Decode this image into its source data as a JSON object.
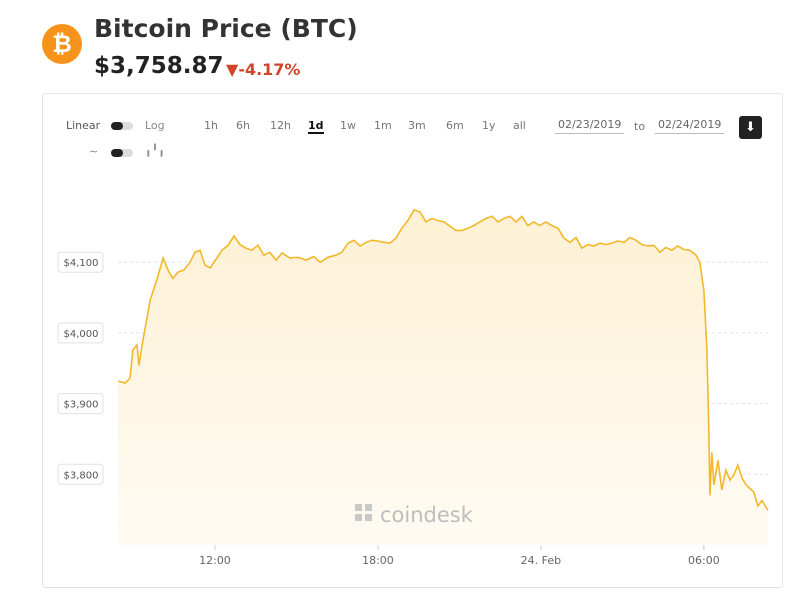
{
  "header": {
    "title": "Bitcoin Price",
    "ticker": "(BTC)",
    "price": "$3,758.87",
    "change": "-4.17%"
  },
  "controls": {
    "scale_linear": "Linear",
    "scale_log": "Log",
    "ranges": [
      "1h",
      "6h",
      "12h",
      "1d",
      "1w",
      "1m",
      "3m",
      "6m",
      "1y",
      "all"
    ],
    "date_from": "02/23/2019",
    "date_sep": "to",
    "date_to": "02/24/2019"
  },
  "watermark": "coindesk",
  "chart_data": {
    "type": "area",
    "color": "#f3b829",
    "grid": true,
    "x": [
      8.43,
      8.69,
      8.87,
      8.98,
      9.13,
      9.2,
      9.35,
      9.61,
      9.86,
      10.09,
      10.27,
      10.45,
      10.64,
      10.86,
      11.08,
      11.26,
      11.45,
      11.63,
      11.82,
      12.07,
      12.26,
      12.48,
      12.7,
      12.92,
      13.14,
      13.36,
      13.58,
      13.8,
      14.02,
      14.25,
      14.47,
      14.76,
      15.06,
      15.35,
      15.64,
      15.87,
      16.16,
      16.45,
      16.67,
      16.9,
      17.12,
      17.34,
      17.56,
      17.78,
      18,
      18.22,
      18.44,
      18.66,
      18.88,
      19.1,
      19.33,
      19.55,
      19.77,
      19.99,
      20.21,
      20.43,
      20.65,
      20.87,
      21.09,
      21.31,
      21.53,
      21.75,
      21.98,
      22.2,
      22.42,
      22.64,
      22.86,
      23.08,
      23.3,
      23.52,
      23.74,
      23.96,
      24.18,
      24.4,
      24.63,
      24.85,
      25.07,
      25.29,
      25.51,
      25.73,
      25.95,
      26.17,
      26.39,
      26.61,
      26.83,
      27.06,
      27.28,
      27.5,
      27.72,
      27.94,
      28.16,
      28.38,
      28.6,
      28.82,
      29.04,
      29.26,
      29.48,
      29.71,
      29.85,
      30,
      30.11,
      30.18,
      30.22,
      30.29,
      30.37,
      30.52,
      30.66,
      30.81,
      30.96,
      31.1,
      31.25,
      31.4,
      31.55,
      31.69,
      31.84,
      31.99,
      32.14,
      32.36
    ],
    "values": [
      3932,
      3929,
      3936,
      3976,
      3983,
      3954,
      3990,
      4046,
      4075,
      4106,
      4089,
      4077,
      4086,
      4089,
      4100,
      4114,
      4117,
      4096,
      4092,
      4106,
      4117,
      4124,
      4137,
      4125,
      4120,
      4117,
      4124,
      4110,
      4114,
      4103,
      4113,
      4106,
      4107,
      4103,
      4108,
      4100,
      4107,
      4110,
      4114,
      4127,
      4131,
      4123,
      4128,
      4131,
      4130,
      4128,
      4127,
      4134,
      4148,
      4159,
      4174,
      4171,
      4157,
      4162,
      4159,
      4157,
      4151,
      4145,
      4145,
      4148,
      4152,
      4157,
      4162,
      4165,
      4157,
      4162,
      4165,
      4157,
      4165,
      4152,
      4157,
      4152,
      4157,
      4152,
      4148,
      4134,
      4128,
      4135,
      4120,
      4125,
      4123,
      4127,
      4125,
      4127,
      4130,
      4128,
      4135,
      4131,
      4125,
      4123,
      4124,
      4114,
      4121,
      4117,
      4123,
      4118,
      4117,
      4110,
      4100,
      4060,
      3976,
      3862,
      3770,
      3831,
      3785,
      3820,
      3778,
      3806,
      3792,
      3799,
      3813,
      3795,
      3785,
      3780,
      3775,
      3755,
      3763,
      3749
    ],
    "xlim": [
      8.43,
      32.36
    ],
    "xticks": [
      {
        "value": 12,
        "label": "12:00"
      },
      {
        "value": 18,
        "label": "18:00"
      },
      {
        "value": 24,
        "label": "24. Feb"
      },
      {
        "value": 30,
        "label": "06:00"
      }
    ],
    "ylim": [
      3700,
      4205
    ],
    "yticks": [
      {
        "value": 3800,
        "label": "$3,800"
      },
      {
        "value": 3900,
        "label": "$3,900"
      },
      {
        "value": 4000,
        "label": "$4,000"
      },
      {
        "value": 4100,
        "label": "$4,100"
      }
    ]
  }
}
